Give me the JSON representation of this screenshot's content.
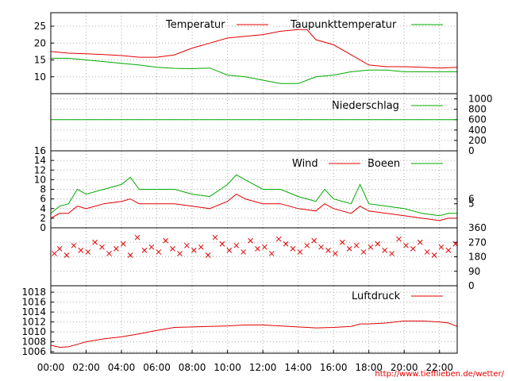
{
  "chart_data": [
    {
      "type": "line",
      "title": "",
      "x_ticks": [
        "00:00",
        "02:00",
        "04:00",
        "06:00",
        "08:00",
        "10:00",
        "12:00",
        "14:00",
        "16:00",
        "18:00",
        "20:00",
        "22:00"
      ],
      "y_ticks_left": [
        "10",
        "15",
        "20",
        "25"
      ],
      "ylim": [
        5,
        29
      ],
      "grid": true,
      "legend_placement": "top-right",
      "series": [
        {
          "name": "Temperatur",
          "color": "#e00000",
          "x": [
            0,
            1,
            2,
            3,
            4,
            5,
            6,
            7,
            8,
            9,
            10,
            11,
            12,
            13,
            14,
            14.5,
            15,
            16,
            17,
            18,
            19,
            20,
            21,
            22,
            23
          ],
          "y": [
            17.5,
            17,
            16.8,
            16.6,
            16.3,
            15.8,
            15.8,
            16.5,
            18.5,
            20,
            21.5,
            22,
            22.5,
            23.5,
            24,
            24,
            21,
            19.5,
            16.5,
            13.5,
            13,
            13,
            12.8,
            12.6,
            12.8
          ]
        },
        {
          "name": "Taupunkttemperatur",
          "color": "#00aa00",
          "x": [
            0,
            1,
            2,
            3,
            4,
            5,
            6,
            7,
            8,
            9,
            10,
            11,
            12,
            13,
            14,
            14.5,
            15,
            16,
            17,
            18,
            19,
            20,
            21,
            22,
            23
          ],
          "y": [
            15.5,
            15.5,
            15,
            14.5,
            14,
            13.5,
            12.8,
            12.5,
            12.4,
            12.6,
            10.5,
            10,
            9,
            8,
            8,
            9,
            10,
            10.5,
            11.5,
            12,
            12,
            11.5,
            11.5,
            11.5,
            11.5
          ]
        }
      ]
    },
    {
      "type": "line",
      "title": "",
      "y_ticks_right": [
        "0",
        "200",
        "400",
        "600",
        "800",
        "1000"
      ],
      "ylim": [
        0,
        1100
      ],
      "grid": true,
      "legend_placement": "top-right",
      "series": [
        {
          "name": "Niederschlag",
          "color": "#00aa00",
          "x": [
            0,
            23
          ],
          "y": [
            600,
            600
          ]
        }
      ]
    },
    {
      "type": "line",
      "title": "",
      "y_ticks_left": [
        "0",
        "2",
        "4",
        "6",
        "8",
        "10",
        "12",
        "14",
        "16"
      ],
      "y_ticks_right": [
        "5",
        "6"
      ],
      "ylim": [
        0,
        16
      ],
      "grid": true,
      "legend_placement": "top-right",
      "series": [
        {
          "name": "Wind",
          "color": "#e00000",
          "x": [
            0,
            0.5,
            1,
            1.5,
            2,
            3,
            4,
            4.5,
            5,
            6,
            7,
            8,
            9,
            10,
            10.5,
            11,
            12,
            13,
            14,
            15,
            15.5,
            16,
            17,
            17.5,
            18,
            19,
            20,
            21,
            22,
            22.5,
            23
          ],
          "y": [
            2,
            3,
            3,
            4.5,
            4,
            5,
            5.5,
            6,
            5,
            5,
            5,
            4.5,
            4,
            5.5,
            7,
            6,
            5,
            5,
            4,
            3.5,
            5,
            4,
            3,
            4.5,
            3.5,
            3,
            2.5,
            2,
            1.5,
            2,
            2
          ]
        },
        {
          "name": "Boeen",
          "color": "#00aa00",
          "x": [
            0,
            0.5,
            1,
            1.5,
            2,
            3,
            4,
            4.5,
            5,
            6,
            7,
            8,
            9,
            10,
            10.5,
            11,
            12,
            13,
            14,
            15,
            15.5,
            16,
            17,
            17.5,
            18,
            19,
            20,
            21,
            22,
            22.5,
            23
          ],
          "y": [
            3,
            4.5,
            5,
            8,
            7,
            8,
            9,
            10.5,
            8,
            8,
            8,
            7,
            6.5,
            9,
            11,
            10,
            8,
            8,
            6.5,
            5.5,
            8,
            6,
            5,
            9,
            5,
            4.5,
            4,
            3,
            2.5,
            3,
            3
          ]
        }
      ]
    },
    {
      "type": "scatter",
      "title": "",
      "y_ticks_right": [
        "0",
        "90",
        "180",
        "270",
        "360"
      ],
      "ylim": [
        0,
        360
      ],
      "grid": true,
      "series": [
        {
          "name": "",
          "color": "#e00000",
          "marker": "x",
          "x": [
            0.2,
            0.5,
            0.9,
            1.3,
            1.7,
            2.1,
            2.5,
            2.9,
            3.3,
            3.7,
            4.1,
            4.5,
            4.9,
            5.3,
            5.7,
            6.1,
            6.5,
            6.9,
            7.3,
            7.7,
            8.1,
            8.5,
            8.9,
            9.3,
            9.7,
            10.1,
            10.5,
            10.9,
            11.3,
            11.7,
            12.1,
            12.5,
            12.9,
            13.3,
            13.7,
            14.1,
            14.5,
            14.9,
            15.3,
            15.7,
            16.1,
            16.5,
            16.9,
            17.3,
            17.7,
            18.1,
            18.5,
            18.9,
            19.3,
            19.7,
            20.1,
            20.5,
            20.9,
            21.3,
            21.7,
            22.1,
            22.5,
            22.9
          ],
          "y": [
            200,
            230,
            190,
            250,
            220,
            210,
            270,
            240,
            200,
            230,
            260,
            190,
            300,
            220,
            240,
            210,
            280,
            230,
            200,
            250,
            220,
            240,
            190,
            300,
            260,
            220,
            250,
            210,
            280,
            230,
            240,
            200,
            290,
            260,
            230,
            210,
            250,
            280,
            240,
            220,
            200,
            270,
            230,
            250,
            210,
            240,
            260,
            220,
            200,
            290,
            250,
            230,
            270,
            210,
            190,
            240,
            220,
            260
          ]
        }
      ]
    },
    {
      "type": "line",
      "title": "",
      "y_ticks_left": [
        "1006",
        "1008",
        "1010",
        "1012",
        "1014",
        "1016",
        "1018"
      ],
      "ylim": [
        1005.7,
        1019.3
      ],
      "grid": true,
      "legend_placement": "top-right",
      "series": [
        {
          "name": "Luftdruck",
          "color": "#e00000",
          "x": [
            0,
            0.5,
            1,
            1.5,
            2,
            3,
            4,
            5,
            6,
            7,
            8,
            9,
            10,
            11,
            12,
            13,
            14,
            15,
            16,
            17,
            17.5,
            18,
            19,
            20,
            21,
            22,
            22.5,
            23
          ],
          "y": [
            1007.3,
            1006.9,
            1007,
            1007.5,
            1008,
            1008.6,
            1009,
            1009.6,
            1010.3,
            1010.9,
            1011,
            1011.1,
            1011.2,
            1011.4,
            1011.4,
            1011.2,
            1011,
            1010.8,
            1010.9,
            1011.1,
            1011.6,
            1011.6,
            1011.8,
            1012.2,
            1012.2,
            1012,
            1011.8,
            1011.1
          ]
        }
      ]
    }
  ],
  "footer": {
    "url": "http://www.tiefflieben.de/wetter/"
  }
}
